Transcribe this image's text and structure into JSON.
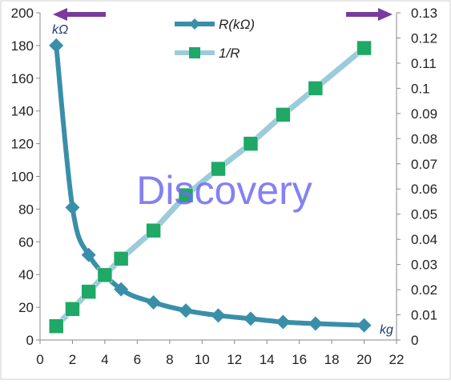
{
  "chart_data": {
    "type": "line",
    "x": [
      1,
      2,
      3,
      5,
      7,
      9,
      11,
      13,
      15,
      17,
      20
    ],
    "x_left": [
      1,
      2,
      3,
      4,
      5,
      7,
      9,
      11,
      13,
      15,
      17,
      20
    ],
    "series": [
      {
        "name": "R(kΩ)",
        "axis": "left",
        "x": [
          1,
          2,
          3,
          5,
          7,
          9,
          11,
          13,
          15,
          17,
          20
        ],
        "values": [
          180,
          81,
          52,
          31,
          23,
          18,
          15,
          13,
          11,
          10,
          9
        ],
        "color": "#3a8fa8",
        "marker": "diamond"
      },
      {
        "name": "1/R",
        "axis": "right",
        "x": [
          1,
          2,
          3,
          4,
          5,
          7,
          9,
          11,
          13,
          15,
          17,
          20
        ],
        "values": [
          0.0055,
          0.0123,
          0.0192,
          0.0258,
          0.0323,
          0.0435,
          0.0575,
          0.068,
          0.078,
          0.0895,
          0.1,
          0.116
        ],
        "color": "#9ccbdb",
        "marker": "square",
        "marker_color": "#1fa866"
      }
    ],
    "xlim": [
      0,
      22
    ],
    "ylim": [
      0,
      200
    ],
    "y2lim": [
      0,
      0.13
    ],
    "x_ticks": [
      "0",
      "2",
      "4",
      "6",
      "8",
      "10",
      "12",
      "14",
      "16",
      "18",
      "20",
      "22"
    ],
    "y_ticks": [
      "0",
      "20",
      "40",
      "60",
      "80",
      "100",
      "120",
      "140",
      "160",
      "180",
      "200"
    ],
    "y2_ticks": [
      "0",
      "0.01",
      "0.02",
      "0.03",
      "0.04",
      "0.05",
      "0.06",
      "0.07",
      "0.08",
      "0.09",
      "0.1",
      "0.11",
      "0.12",
      "0.13"
    ],
    "y_unit": "kΩ",
    "x_unit": "kg",
    "watermark": "Discovery",
    "legend_placement": "top-center",
    "grid": false,
    "colors": {
      "arrow": "#7a3a9e",
      "axis": "#888888"
    }
  }
}
